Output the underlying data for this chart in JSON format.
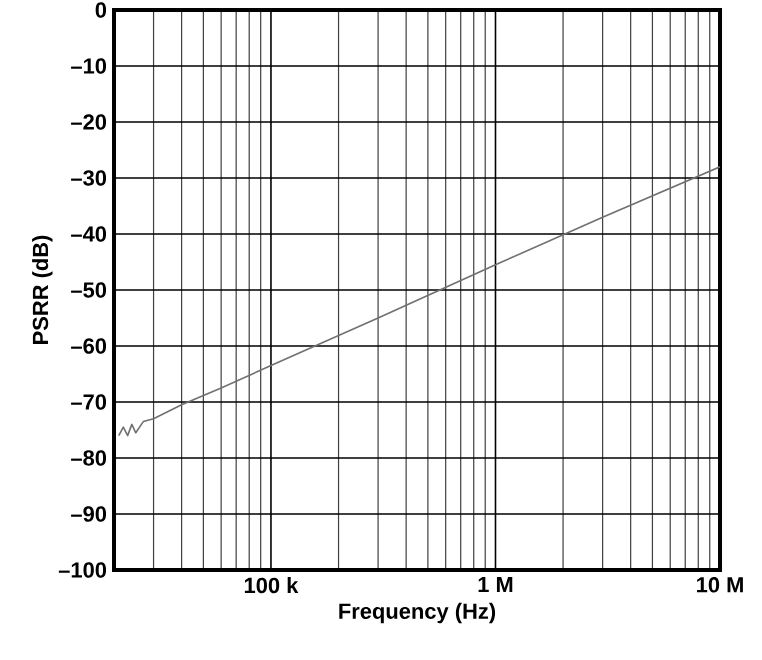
{
  "chart_data": {
    "type": "line",
    "xlabel": "Frequency (Hz)",
    "ylabel": "PSRR (dB)",
    "log": "x",
    "grid": true,
    "marker": "none",
    "line_style": "solid",
    "xlim": [
      20000,
      10000000
    ],
    "xticks": [
      {
        "value": 100000,
        "label": "100 k"
      },
      {
        "value": 1000000,
        "label": "1 M"
      },
      {
        "value": 10000000,
        "label": "10 M"
      }
    ],
    "ylim": [
      -100,
      0
    ],
    "yticks": [
      0,
      {
        "value": -10,
        "label": "–10"
      },
      {
        "value": -20,
        "label": "–20"
      },
      {
        "value": -30,
        "label": "–30"
      },
      {
        "value": -40,
        "label": "–40"
      },
      {
        "value": -50,
        "label": "–50"
      },
      {
        "value": -60,
        "label": "–60"
      },
      {
        "value": -70,
        "label": "–70"
      },
      {
        "value": -80,
        "label": "–80"
      },
      {
        "value": -90,
        "label": "–90"
      },
      {
        "value": -100,
        "label": "–100"
      }
    ],
    "series": [
      {
        "color": "#707070",
        "x": [
          21000,
          22000,
          23000,
          24000,
          25000,
          27000,
          30000,
          40000,
          60000,
          100000,
          300000,
          1000000,
          3000000,
          10000000
        ],
        "values": [
          -76,
          -74.5,
          -76,
          -74,
          -75.5,
          -73.5,
          -73,
          -70.5,
          -67.5,
          -63.5,
          -55,
          -45.5,
          -37,
          -28
        ]
      }
    ]
  }
}
